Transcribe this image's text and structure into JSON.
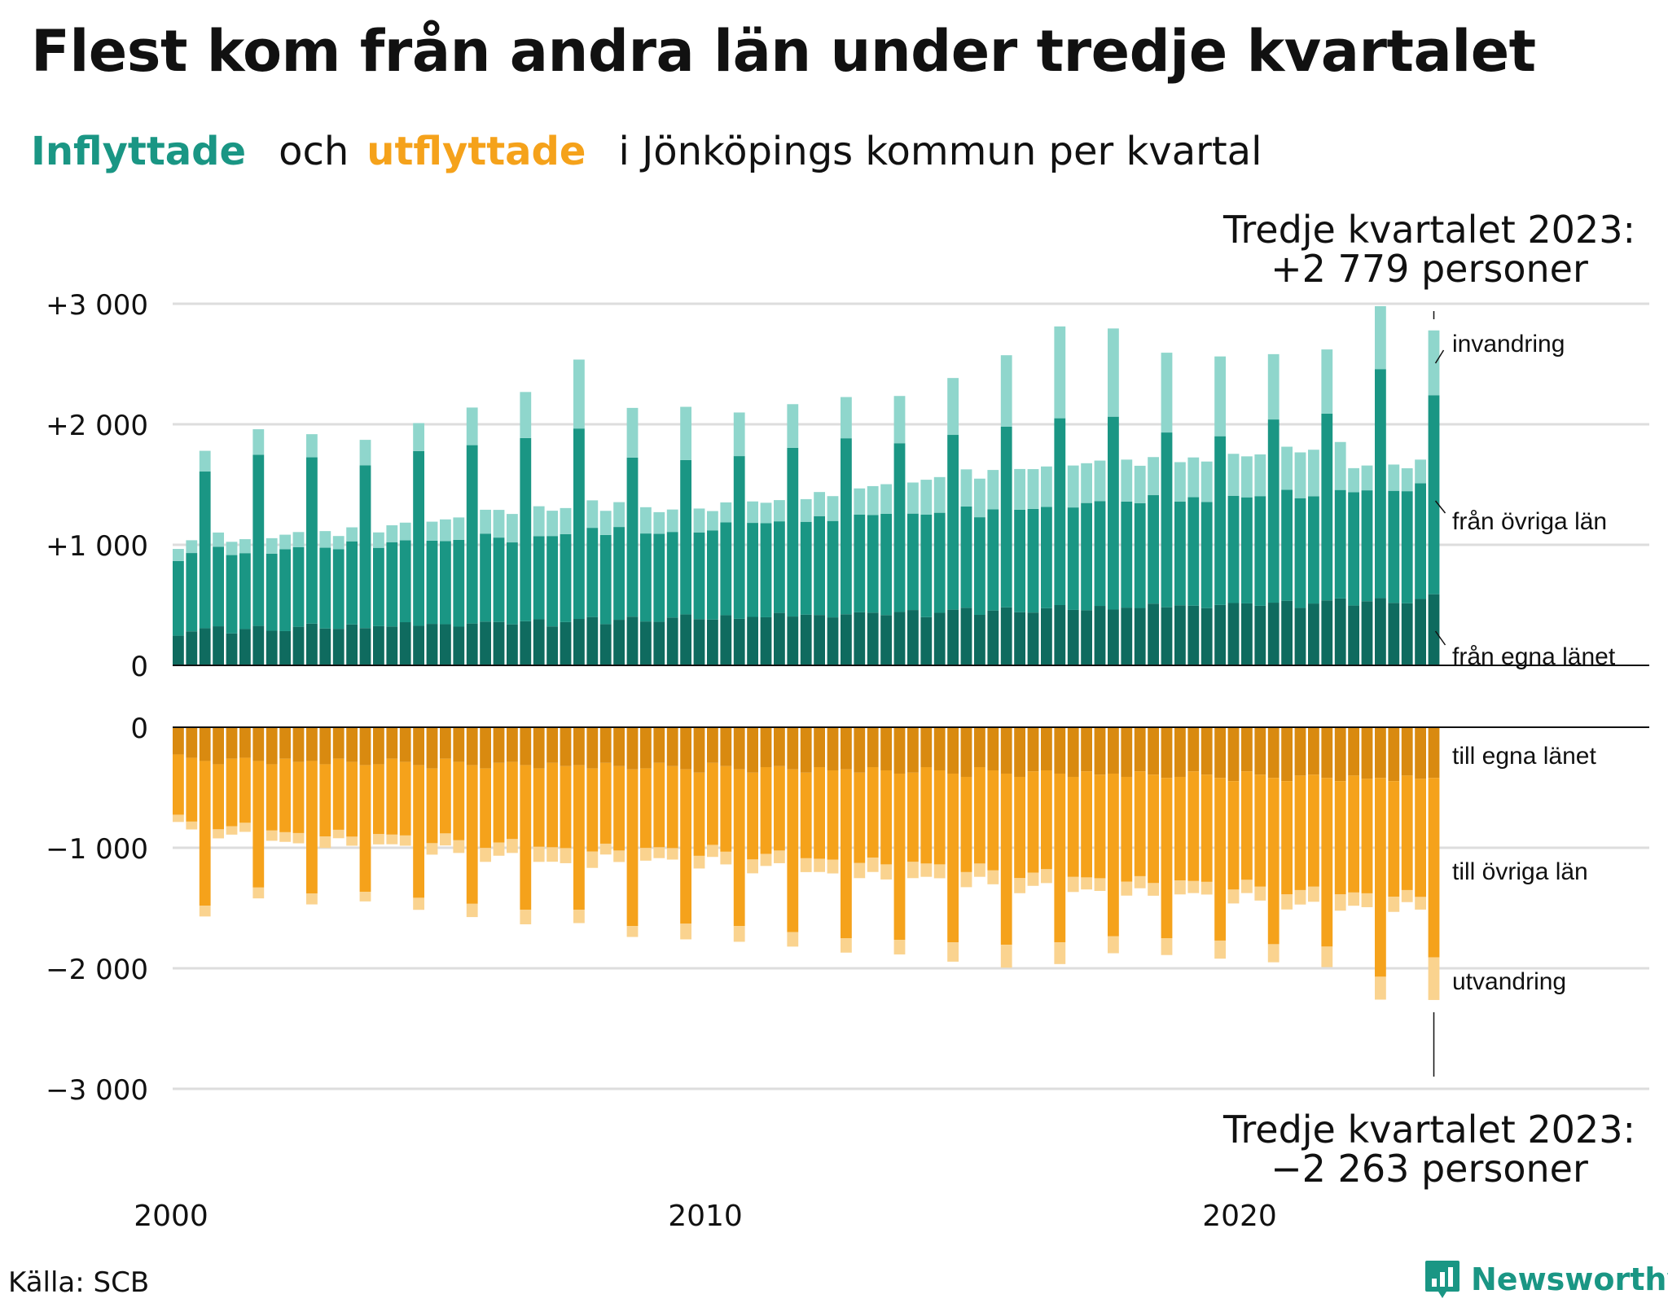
{
  "title": "Flest kom från andra län under tredje kvartalet",
  "subtitle": {
    "in_word": "Inflyttade",
    "and_word": "och",
    "out_word": "utflyttade",
    "rest": "i Jönköpings  kommun  per  kvartal"
  },
  "colors": {
    "in_own": "#0f6b5f",
    "in_other": "#1a9684",
    "in_immig": "#8fd6cc",
    "out_own": "#d98a10",
    "out_other": "#f5a21b",
    "out_emig": "#fad38f",
    "grid": "#dddddd",
    "accent_in": "#1a9684",
    "accent_out": "#f5a21b"
  },
  "source": "Källa: SCB",
  "brand": {
    "name": "Newsworthy",
    "icon": "bar-chart-icon"
  },
  "chart_data": {
    "type": "bar",
    "stacked": true,
    "start_year": 2000,
    "periods_per_year": 4,
    "n_periods": 95,
    "x_ticks": [
      "2000",
      "2010",
      "2020"
    ],
    "ylim": [
      -3000,
      3000
    ],
    "yticks_top": [
      "+3 000",
      "+2 000",
      "+1 000",
      "0"
    ],
    "yticks_bottom": [
      "0",
      "−1 000",
      "−2 000",
      "−3 000"
    ],
    "grid": true,
    "series_labels": {
      "in_immig": "invandring",
      "in_other": "från övriga län",
      "in_own": "från egna länet",
      "out_own": "till egna länet",
      "out_other": "till övriga län",
      "out_emig": "utvandring"
    },
    "annotation_top": {
      "line1": "Tredje kvartalet 2023:",
      "line2": "+2 779 personer"
    },
    "annotation_bottom": {
      "line1": "Tredje kvartalet 2023:",
      "line2": "−2 263 personer"
    },
    "in_base": {
      "own": [
        270,
        290,
        300,
        300
      ],
      "other_nonq3": [
        640,
        650,
        660,
        670,
        690,
        710,
        700,
        730,
        750,
        720,
        760,
        780,
        800,
        820,
        840,
        830,
        860,
        870,
        880,
        890,
        900,
        910,
        920,
        940
      ],
      "other_q3": [
        1300,
        1420,
        1380,
        1350,
        1450,
        1480,
        1520,
        1580,
        1320,
        1280,
        1350,
        1400,
        1460,
        1400,
        1450,
        1500,
        1550,
        1600,
        1450,
        1400,
        1520,
        1550,
        1900,
        1900
      ],
      "immig_nonq3": [
        100,
        110,
        120,
        110,
        140,
        180,
        230,
        210,
        200,
        180,
        160,
        170,
        200,
        240,
        290,
        320,
        330,
        330,
        310,
        330,
        340,
        380,
        200,
        190
      ],
      "immig_q3": [
        160,
        200,
        180,
        200,
        220,
        300,
        370,
        560,
        400,
        430,
        350,
        350,
        330,
        380,
        460,
        580,
        750,
        720,
        650,
        650,
        530,
        520,
        510,
        470
      ]
    },
    "out_base": {
      "own": [
        240,
        260,
        280,
        300
      ],
      "other_nonq3": [
        520,
        560,
        590,
        600,
        620,
        640,
        660,
        680,
        680,
        690,
        700,
        720,
        740,
        760,
        790,
        820,
        840,
        860,
        880,
        900,
        920,
        950,
        950,
        960
      ],
      "other_q3": [
        1200,
        1050,
        1100,
        1050,
        1100,
        1150,
        1200,
        1200,
        1300,
        1280,
        1300,
        1350,
        1400,
        1380,
        1400,
        1420,
        1400,
        1350,
        1330,
        1350,
        1380,
        1400,
        1650,
        1500
      ],
      "emig_nonq3": [
        60,
        70,
        80,
        70,
        80,
        100,
        110,
        120,
        90,
        90,
        100,
        100,
        110,
        120,
        110,
        110,
        110,
        100,
        100,
        100,
        110,
        120,
        110,
        100
      ],
      "emig_q3": [
        80,
        80,
        80,
        70,
        90,
        100,
        110,
        100,
        80,
        120,
        120,
        110,
        110,
        110,
        150,
        180,
        170,
        130,
        130,
        140,
        140,
        160,
        180,
        190
      ]
    },
    "last_quarter": {
      "in_own": 590,
      "in_other": 1650,
      "in_immig": 539,
      "out_own": 420,
      "out_other": 1490,
      "out_emig": 353
    }
  }
}
